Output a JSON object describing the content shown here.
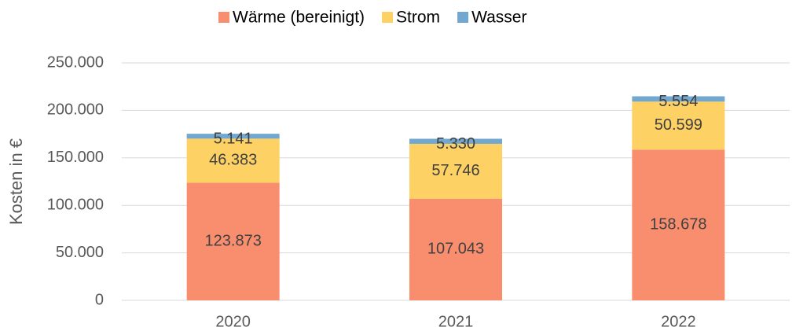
{
  "chart_data": {
    "type": "stacked_bar",
    "categories": [
      "2020",
      "2021",
      "2022"
    ],
    "series": [
      {
        "name": "Wärme (bereinigt)",
        "color": "#f98e6f",
        "values": [
          123873,
          107043,
          158678
        ],
        "value_labels": [
          "123.873",
          "107.043",
          "158.678"
        ]
      },
      {
        "name": "Strom",
        "color": "#fdd163",
        "values": [
          46383,
          57746,
          50599
        ],
        "value_labels": [
          "46.383",
          "57.746",
          "50.599"
        ]
      },
      {
        "name": "Wasser",
        "color": "#72a8d0",
        "values": [
          5141,
          5330,
          5554
        ],
        "value_labels": [
          "5.141",
          "5.330",
          "5.554"
        ]
      }
    ],
    "ylabel": "Kosten in €",
    "ylim": [
      0,
      250000
    ],
    "yticks": [
      0,
      {
        "value": 50000,
        "label": "50.000"
      },
      {
        "value": 100000,
        "label": "100.000"
      },
      {
        "value": 150000,
        "label": "150.000"
      },
      {
        "value": 200000,
        "label": "200.000"
      },
      {
        "value": 250000,
        "label": "250.000"
      }
    ],
    "grid": true,
    "legend": "top"
  }
}
